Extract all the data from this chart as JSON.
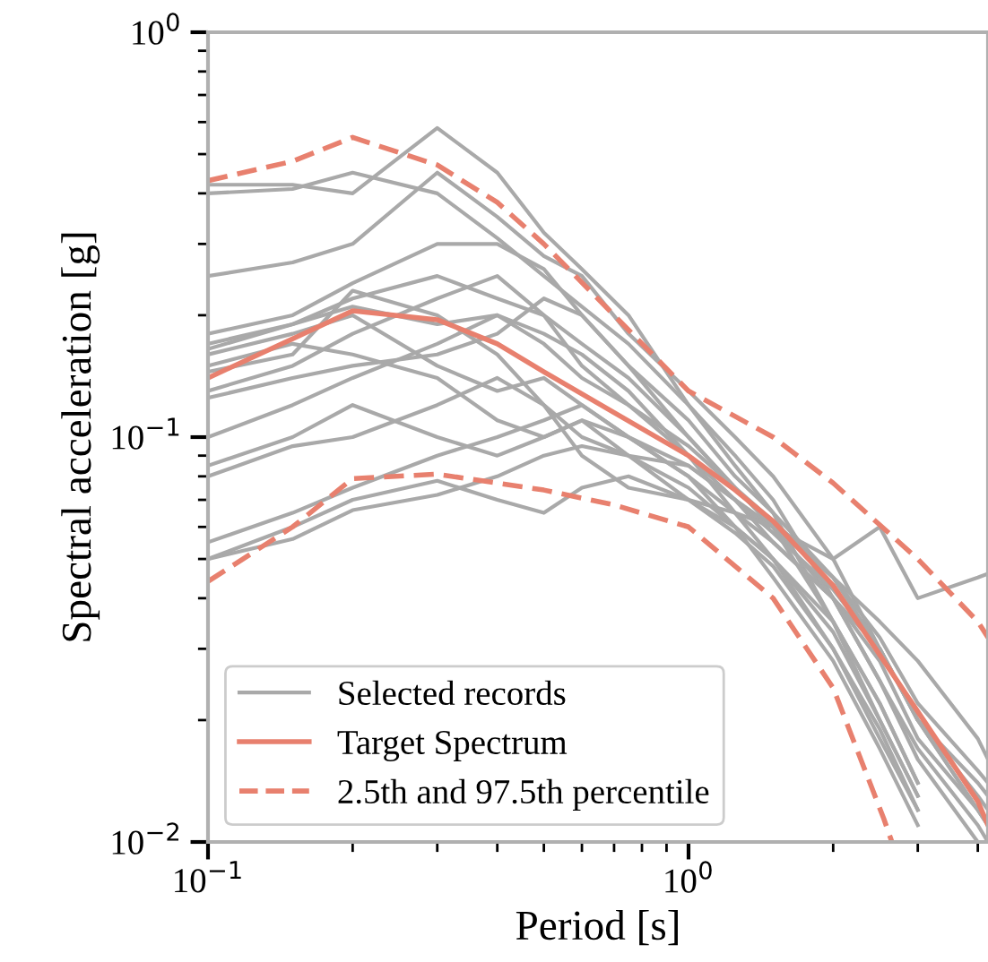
{
  "chart_data": {
    "type": "line",
    "xlabel": "Period [s]",
    "ylabel": "Spectral acceleration [g]",
    "log": "xy",
    "xlim": [
      0.1,
      4.2
    ],
    "ylim": [
      0.01,
      1
    ],
    "xticks": [
      {
        "value": 0.1,
        "label": "10$^{−1}$"
      },
      {
        "value": 1,
        "label": "10$^{0}$"
      }
    ],
    "yticks": [
      {
        "value": 0.01,
        "label": "10$^{−2}$"
      },
      {
        "value": 0.1,
        "label": "10$^{−1}$"
      },
      {
        "value": 1,
        "label": "10$^{0}$"
      }
    ],
    "grid": false,
    "legend": "bottom left",
    "marker": "none",
    "x": [
      0.1,
      0.15,
      0.2,
      0.3,
      0.4,
      0.5,
      0.6,
      0.75,
      1,
      1.25,
      1.5,
      2,
      2.5,
      3,
      4,
      4.2
    ],
    "series": [
      {
        "name": "Selected records",
        "color": "#a9a9a9",
        "line_style": "solid",
        "values": [
          0.4,
          0.41,
          0.45,
          0.4,
          0.31,
          0.25,
          0.21,
          0.17,
          0.12,
          0.09,
          0.07,
          0.04,
          0.025,
          0.016,
          0.01,
          null
        ]
      },
      {
        "color": "#a9a9a9",
        "line_style": "solid",
        "values": [
          0.42,
          0.42,
          0.4,
          0.58,
          0.45,
          0.32,
          0.26,
          0.2,
          0.12,
          0.085,
          0.065,
          0.035,
          0.022,
          0.014,
          null,
          null
        ]
      },
      {
        "color": "#a9a9a9",
        "line_style": "solid",
        "values": [
          0.25,
          0.27,
          0.3,
          0.45,
          0.35,
          0.28,
          0.25,
          0.18,
          0.13,
          0.1,
          0.08,
          0.05,
          0.03,
          0.02,
          0.012,
          0.011
        ]
      },
      {
        "color": "#a9a9a9",
        "line_style": "solid",
        "values": [
          0.18,
          0.2,
          0.24,
          0.3,
          0.3,
          0.26,
          0.2,
          0.15,
          0.1,
          0.075,
          0.06,
          0.04,
          0.025,
          0.017,
          0.011,
          0.01
        ]
      },
      {
        "color": "#a9a9a9",
        "line_style": "solid",
        "values": [
          0.17,
          0.19,
          0.22,
          0.25,
          0.22,
          0.2,
          0.15,
          0.12,
          0.09,
          0.07,
          0.055,
          0.04,
          0.03,
          0.02,
          0.013,
          0.012
        ]
      },
      {
        "color": "#a9a9a9",
        "line_style": "solid",
        "values": [
          0.16,
          0.18,
          0.2,
          0.15,
          0.13,
          0.14,
          0.12,
          0.1,
          0.085,
          0.07,
          0.06,
          0.045,
          0.035,
          0.028,
          0.018,
          0.016
        ]
      },
      {
        "color": "#a9a9a9",
        "line_style": "solid",
        "values": [
          0.15,
          0.17,
          0.16,
          0.14,
          0.11,
          0.1,
          0.11,
          0.1,
          0.08,
          0.065,
          0.055,
          0.04,
          0.028,
          0.018,
          0.012,
          0.011
        ]
      },
      {
        "color": "#a9a9a9",
        "line_style": "solid",
        "values": [
          0.145,
          0.16,
          0.23,
          0.2,
          0.16,
          0.12,
          0.1,
          0.09,
          0.085,
          0.07,
          0.058,
          0.042,
          0.03,
          0.02,
          0.014,
          0.013
        ]
      },
      {
        "color": "#a9a9a9",
        "line_style": "solid",
        "values": [
          0.13,
          0.15,
          0.18,
          0.22,
          0.25,
          0.2,
          0.17,
          0.14,
          0.1,
          0.075,
          0.06,
          0.035,
          0.02,
          0.013,
          null,
          null
        ]
      },
      {
        "color": "#a9a9a9",
        "line_style": "solid",
        "values": [
          0.125,
          0.14,
          0.15,
          0.16,
          0.18,
          0.22,
          0.2,
          0.15,
          0.11,
          0.08,
          0.065,
          0.045,
          0.03,
          0.02,
          0.012,
          0.011
        ]
      },
      {
        "color": "#a9a9a9",
        "line_style": "solid",
        "values": [
          0.1,
          0.12,
          0.14,
          0.17,
          0.2,
          0.18,
          0.16,
          0.13,
          0.09,
          0.065,
          0.05,
          0.03,
          0.018,
          0.012,
          null,
          null
        ]
      },
      {
        "color": "#a9a9a9",
        "line_style": "solid",
        "values": [
          0.085,
          0.1,
          0.12,
          0.1,
          0.09,
          0.1,
          0.11,
          0.09,
          0.07,
          0.065,
          0.06,
          0.05,
          0.06,
          0.04,
          0.045,
          0.046
        ]
      },
      {
        "color": "#a9a9a9",
        "line_style": "solid",
        "values": [
          0.08,
          0.095,
          0.1,
          0.12,
          0.14,
          0.12,
          0.09,
          0.075,
          0.07,
          0.06,
          0.05,
          0.035,
          0.022,
          0.014,
          null,
          null
        ]
      },
      {
        "color": "#a9a9a9",
        "line_style": "solid",
        "values": [
          0.055,
          0.065,
          0.075,
          0.09,
          0.1,
          0.11,
          0.12,
          0.1,
          0.08,
          0.06,
          0.045,
          0.028,
          0.017,
          0.011,
          null,
          null
        ]
      },
      {
        "color": "#a9a9a9",
        "line_style": "solid",
        "values": [
          0.05,
          0.056,
          0.066,
          0.072,
          0.08,
          0.09,
          0.095,
          0.09,
          0.075,
          0.06,
          0.05,
          0.033,
          0.02,
          0.013,
          null,
          null
        ]
      },
      {
        "color": "#a9a9a9",
        "line_style": "solid",
        "values": [
          0.05,
          0.06,
          0.07,
          0.078,
          0.07,
          0.065,
          0.075,
          0.08,
          0.07,
          0.058,
          0.048,
          0.03,
          0.019,
          0.012,
          null,
          null
        ]
      },
      {
        "color": "#a9a9a9",
        "line_style": "solid",
        "values": [
          0.165,
          0.19,
          0.21,
          0.19,
          0.2,
          0.17,
          0.14,
          0.12,
          0.095,
          0.075,
          0.062,
          0.045,
          0.032,
          0.022,
          0.015,
          0.014
        ]
      },
      {
        "name": "Target Spectrum",
        "color": "#e8806e",
        "line_style": "solid",
        "x": [
          0.1,
          0.15,
          0.2,
          0.3,
          0.4,
          0.5,
          0.7,
          1,
          1.25,
          1.5,
          2,
          3,
          4,
          4.2
        ],
        "values": [
          0.14,
          0.175,
          0.205,
          0.195,
          0.17,
          0.145,
          0.115,
          0.09,
          0.074,
          0.062,
          0.043,
          0.021,
          0.0126,
          0.011
        ]
      },
      {
        "name": "2.5th and 97.5th percentile",
        "color": "#e8806e",
        "line_style": "dashed",
        "x": [
          0.1,
          0.15,
          0.2,
          0.3,
          0.4,
          0.5,
          0.7,
          1,
          1.5,
          2,
          3,
          4,
          4.2
        ],
        "values": [
          0.43,
          0.48,
          0.55,
          0.47,
          0.38,
          0.3,
          0.2,
          0.13,
          0.1,
          0.077,
          0.05,
          0.035,
          0.032
        ]
      },
      {
        "color": "#e8806e",
        "line_style": "dashed",
        "x": [
          0.1,
          0.15,
          0.2,
          0.3,
          0.5,
          0.7,
          1,
          1.5,
          2,
          2.55,
          2.65
        ],
        "values": [
          0.044,
          0.06,
          0.079,
          0.081,
          0.074,
          0.068,
          0.06,
          0.04,
          0.024,
          0.0114,
          0.01
        ]
      }
    ]
  }
}
